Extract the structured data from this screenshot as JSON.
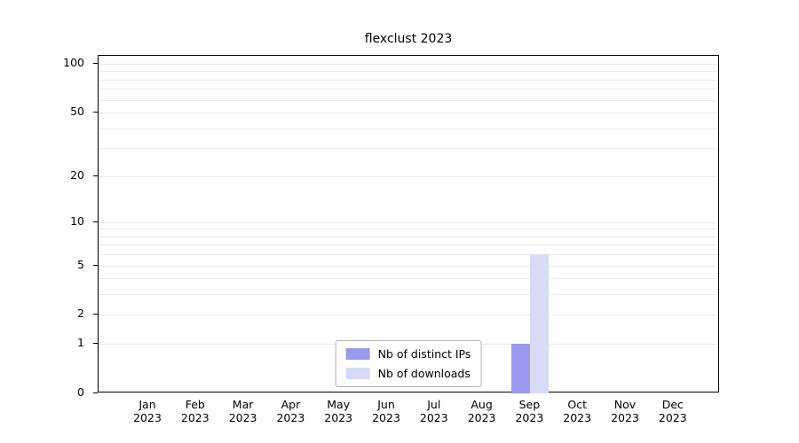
{
  "chart_data": {
    "type": "bar",
    "title": "flexclust 2023",
    "categories": [
      "Jan",
      "Feb",
      "Mar",
      "Apr",
      "May",
      "Jun",
      "Jul",
      "Aug",
      "Sep",
      "Oct",
      "Nov",
      "Dec"
    ],
    "year_label": "2023",
    "series": [
      {
        "name": "Nb of distinct IPs",
        "color": "#9999ee",
        "values": [
          0,
          0,
          0,
          0,
          0,
          0,
          0,
          0,
          1,
          0,
          0,
          0
        ]
      },
      {
        "name": "Nb of downloads",
        "color": "#d9d9f8",
        "values": [
          0,
          0,
          0,
          0,
          0,
          0,
          0,
          0,
          6,
          0,
          0,
          0
        ]
      }
    ],
    "yticks": [
      0,
      1,
      2,
      5,
      10,
      20,
      50,
      100
    ],
    "ylim": [
      0,
      112
    ],
    "scale": "log1p",
    "grid": "horizontal-minor",
    "legend_position": "bottom-center"
  },
  "colors": {
    "background": "#ffffff",
    "axis": "#000000",
    "grid": "#e9e9e9",
    "legend_border": "#b3b3b3"
  }
}
